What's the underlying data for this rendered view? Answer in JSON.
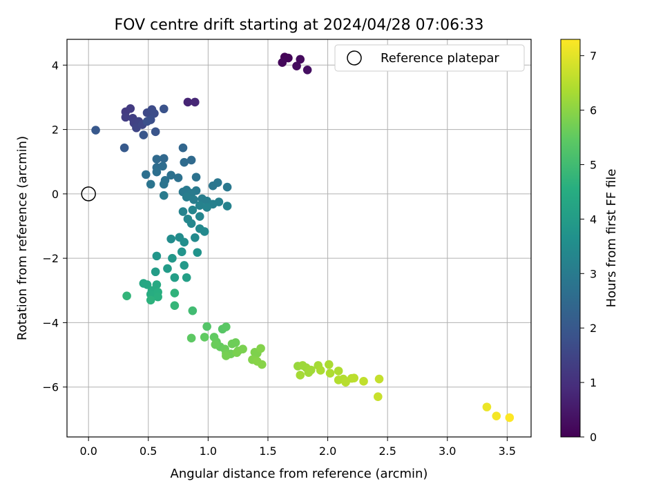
{
  "chart_data": {
    "type": "scatter",
    "title": "FOV centre drift starting at 2024/04/28 07:06:33",
    "xlabel": "Angular distance from reference (arcmin)",
    "ylabel": "Rotation from reference (arcmin)",
    "xlim": [
      -0.18,
      3.7
    ],
    "ylim": [
      -7.55,
      4.8
    ],
    "xticks": [
      0.0,
      0.5,
      1.0,
      1.5,
      2.0,
      2.5,
      3.0,
      3.5
    ],
    "xtick_labels": [
      "0.0",
      "0.5",
      "1.0",
      "1.5",
      "2.0",
      "2.5",
      "3.0",
      "3.5"
    ],
    "yticks": [
      -6,
      -4,
      -2,
      0,
      2,
      4
    ],
    "ytick_labels": [
      "−6",
      "−4",
      "−2",
      "0",
      "2",
      "4"
    ],
    "grid": true,
    "legend": {
      "placement": "top-right",
      "entries": [
        "Reference platepar"
      ]
    },
    "reference_point": {
      "x": 0.0,
      "y": 0.0
    },
    "colorbar": {
      "label": "Hours from first FF file",
      "colormap": "viridis",
      "range": [
        0,
        7.3
      ],
      "ticks": [
        0,
        1,
        2,
        3,
        4,
        5,
        6,
        7
      ],
      "tick_labels": [
        "0",
        "1",
        "2",
        "3",
        "4",
        "5",
        "6",
        "7"
      ]
    },
    "points": [
      {
        "x": 1.64,
        "y": 4.25,
        "c": 0.05
      },
      {
        "x": 1.67,
        "y": 4.22,
        "c": 0.1
      },
      {
        "x": 1.62,
        "y": 4.08,
        "c": 0.15
      },
      {
        "x": 1.77,
        "y": 4.18,
        "c": 0.2
      },
      {
        "x": 1.74,
        "y": 3.97,
        "c": 0.25
      },
      {
        "x": 1.83,
        "y": 3.85,
        "c": 0.3
      },
      {
        "x": 0.83,
        "y": 2.85,
        "c": 0.75
      },
      {
        "x": 0.89,
        "y": 2.85,
        "c": 0.8
      },
      {
        "x": 0.31,
        "y": 2.55,
        "c": 1.2
      },
      {
        "x": 0.35,
        "y": 2.65,
        "c": 1.25
      },
      {
        "x": 0.31,
        "y": 2.38,
        "c": 1.3
      },
      {
        "x": 0.37,
        "y": 2.35,
        "c": 1.35
      },
      {
        "x": 0.38,
        "y": 2.2,
        "c": 1.4
      },
      {
        "x": 0.42,
        "y": 2.25,
        "c": 1.45
      },
      {
        "x": 0.4,
        "y": 2.05,
        "c": 1.5
      },
      {
        "x": 0.45,
        "y": 2.15,
        "c": 1.55
      },
      {
        "x": 0.49,
        "y": 2.52,
        "c": 1.6
      },
      {
        "x": 0.53,
        "y": 2.62,
        "c": 1.65
      },
      {
        "x": 0.55,
        "y": 2.5,
        "c": 1.7
      },
      {
        "x": 0.52,
        "y": 2.3,
        "c": 1.75
      },
      {
        "x": 0.49,
        "y": 2.25,
        "c": 1.8
      },
      {
        "x": 0.63,
        "y": 2.64,
        "c": 1.85
      },
      {
        "x": 0.56,
        "y": 1.93,
        "c": 1.9
      },
      {
        "x": 0.46,
        "y": 1.83,
        "c": 1.95
      },
      {
        "x": 0.06,
        "y": 1.98,
        "c": 2.0
      },
      {
        "x": 0.3,
        "y": 1.43,
        "c": 2.05
      },
      {
        "x": 0.79,
        "y": 1.43,
        "c": 2.4
      },
      {
        "x": 0.63,
        "y": 1.1,
        "c": 2.45
      },
      {
        "x": 0.57,
        "y": 1.08,
        "c": 2.5
      },
      {
        "x": 0.86,
        "y": 1.05,
        "c": 2.5
      },
      {
        "x": 0.8,
        "y": 0.98,
        "c": 2.55
      },
      {
        "x": 0.57,
        "y": 0.82,
        "c": 2.6
      },
      {
        "x": 0.62,
        "y": 0.86,
        "c": 2.6
      },
      {
        "x": 0.48,
        "y": 0.6,
        "c": 2.65
      },
      {
        "x": 0.57,
        "y": 0.68,
        "c": 2.65
      },
      {
        "x": 0.69,
        "y": 0.58,
        "c": 2.7
      },
      {
        "x": 0.75,
        "y": 0.5,
        "c": 2.7
      },
      {
        "x": 0.64,
        "y": 0.42,
        "c": 2.75
      },
      {
        "x": 0.9,
        "y": 0.52,
        "c": 2.75
      },
      {
        "x": 0.52,
        "y": 0.3,
        "c": 2.8
      },
      {
        "x": 0.63,
        "y": 0.3,
        "c": 2.8
      },
      {
        "x": 1.04,
        "y": 0.25,
        "c": 2.85
      },
      {
        "x": 1.08,
        "y": 0.35,
        "c": 2.85
      },
      {
        "x": 1.16,
        "y": 0.21,
        "c": 2.9
      },
      {
        "x": 0.79,
        "y": 0.06,
        "c": 2.9
      },
      {
        "x": 0.82,
        "y": 0.12,
        "c": 2.95
      },
      {
        "x": 0.9,
        "y": 0.1,
        "c": 2.95
      },
      {
        "x": 0.86,
        "y": 0.02,
        "c": 3.0
      },
      {
        "x": 0.63,
        "y": -0.05,
        "c": 3.0
      },
      {
        "x": 0.82,
        "y": -0.1,
        "c": 3.05
      },
      {
        "x": 0.88,
        "y": -0.18,
        "c": 3.05
      },
      {
        "x": 0.95,
        "y": -0.15,
        "c": 3.1
      },
      {
        "x": 0.99,
        "y": -0.22,
        "c": 3.1
      },
      {
        "x": 1.09,
        "y": -0.25,
        "c": 3.15
      },
      {
        "x": 1.04,
        "y": -0.32,
        "c": 3.15
      },
      {
        "x": 1.16,
        "y": -0.38,
        "c": 3.2
      },
      {
        "x": 0.93,
        "y": -0.36,
        "c": 3.2
      },
      {
        "x": 0.99,
        "y": -0.42,
        "c": 3.25
      },
      {
        "x": 0.79,
        "y": -0.55,
        "c": 3.25
      },
      {
        "x": 0.87,
        "y": -0.5,
        "c": 3.3
      },
      {
        "x": 0.93,
        "y": -0.7,
        "c": 3.3
      },
      {
        "x": 0.83,
        "y": -0.78,
        "c": 3.35
      },
      {
        "x": 0.86,
        "y": -0.92,
        "c": 3.35
      },
      {
        "x": 0.93,
        "y": -1.08,
        "c": 3.4
      },
      {
        "x": 0.97,
        "y": -1.17,
        "c": 3.4
      },
      {
        "x": 0.89,
        "y": -1.36,
        "c": 3.45
      },
      {
        "x": 0.69,
        "y": -1.4,
        "c": 3.5
      },
      {
        "x": 0.76,
        "y": -1.35,
        "c": 3.5
      },
      {
        "x": 0.8,
        "y": -1.5,
        "c": 3.55
      },
      {
        "x": 0.91,
        "y": -1.82,
        "c": 3.7
      },
      {
        "x": 0.78,
        "y": -1.8,
        "c": 3.75
      },
      {
        "x": 0.57,
        "y": -1.93,
        "c": 3.8
      },
      {
        "x": 0.7,
        "y": -2.0,
        "c": 3.85
      },
      {
        "x": 0.8,
        "y": -2.22,
        "c": 3.9
      },
      {
        "x": 0.66,
        "y": -2.32,
        "c": 3.95
      },
      {
        "x": 0.56,
        "y": -2.42,
        "c": 4.0
      },
      {
        "x": 0.72,
        "y": -2.6,
        "c": 4.05
      },
      {
        "x": 0.82,
        "y": -2.6,
        "c": 4.1
      },
      {
        "x": 0.46,
        "y": -2.78,
        "c": 4.3
      },
      {
        "x": 0.49,
        "y": -2.82,
        "c": 4.35
      },
      {
        "x": 0.57,
        "y": -2.82,
        "c": 4.4
      },
      {
        "x": 0.53,
        "y": -3.0,
        "c": 4.45
      },
      {
        "x": 0.52,
        "y": -3.12,
        "c": 4.5
      },
      {
        "x": 0.58,
        "y": -3.05,
        "c": 4.55
      },
      {
        "x": 0.58,
        "y": -3.2,
        "c": 4.6
      },
      {
        "x": 0.52,
        "y": -3.3,
        "c": 4.65
      },
      {
        "x": 0.72,
        "y": -3.08,
        "c": 4.7
      },
      {
        "x": 0.32,
        "y": -3.17,
        "c": 4.75
      },
      {
        "x": 0.72,
        "y": -3.47,
        "c": 4.8
      },
      {
        "x": 0.87,
        "y": -3.63,
        "c": 5.0
      },
      {
        "x": 0.99,
        "y": -4.12,
        "c": 5.3
      },
      {
        "x": 1.12,
        "y": -4.2,
        "c": 5.35
      },
      {
        "x": 1.15,
        "y": -4.13,
        "c": 5.4
      },
      {
        "x": 0.86,
        "y": -4.48,
        "c": 5.45
      },
      {
        "x": 0.97,
        "y": -4.45,
        "c": 5.5
      },
      {
        "x": 1.05,
        "y": -4.45,
        "c": 5.5
      },
      {
        "x": 1.07,
        "y": -4.6,
        "c": 5.55
      },
      {
        "x": 1.1,
        "y": -4.75,
        "c": 5.55
      },
      {
        "x": 1.06,
        "y": -4.68,
        "c": 5.6
      },
      {
        "x": 1.14,
        "y": -4.82,
        "c": 5.6
      },
      {
        "x": 1.2,
        "y": -4.66,
        "c": 5.65
      },
      {
        "x": 1.23,
        "y": -4.62,
        "c": 5.65
      },
      {
        "x": 1.15,
        "y": -4.95,
        "c": 5.7
      },
      {
        "x": 1.19,
        "y": -4.97,
        "c": 5.7
      },
      {
        "x": 1.15,
        "y": -5.03,
        "c": 5.75
      },
      {
        "x": 1.25,
        "y": -4.88,
        "c": 5.75
      },
      {
        "x": 1.29,
        "y": -4.82,
        "c": 5.8
      },
      {
        "x": 1.24,
        "y": -4.93,
        "c": 5.8
      },
      {
        "x": 1.39,
        "y": -4.92,
        "c": 5.85
      },
      {
        "x": 1.41,
        "y": -4.95,
        "c": 5.85
      },
      {
        "x": 1.44,
        "y": -4.8,
        "c": 5.9
      },
      {
        "x": 1.37,
        "y": -5.15,
        "c": 5.9
      },
      {
        "x": 1.41,
        "y": -5.2,
        "c": 5.95
      },
      {
        "x": 1.45,
        "y": -5.3,
        "c": 5.95
      },
      {
        "x": 1.75,
        "y": -5.35,
        "c": 6.15
      },
      {
        "x": 1.79,
        "y": -5.33,
        "c": 6.2
      },
      {
        "x": 1.82,
        "y": -5.4,
        "c": 6.2
      },
      {
        "x": 1.86,
        "y": -5.47,
        "c": 6.25
      },
      {
        "x": 1.84,
        "y": -5.55,
        "c": 6.25
      },
      {
        "x": 1.92,
        "y": -5.33,
        "c": 6.3
      },
      {
        "x": 1.77,
        "y": -5.63,
        "c": 6.3
      },
      {
        "x": 1.94,
        "y": -5.48,
        "c": 6.35
      },
      {
        "x": 2.01,
        "y": -5.3,
        "c": 6.35
      },
      {
        "x": 2.02,
        "y": -5.57,
        "c": 6.4
      },
      {
        "x": 2.09,
        "y": -5.5,
        "c": 6.4
      },
      {
        "x": 2.09,
        "y": -5.78,
        "c": 6.45
      },
      {
        "x": 2.13,
        "y": -5.75,
        "c": 6.45
      },
      {
        "x": 2.15,
        "y": -5.85,
        "c": 6.5
      },
      {
        "x": 2.2,
        "y": -5.73,
        "c": 6.5
      },
      {
        "x": 2.22,
        "y": -5.72,
        "c": 6.55
      },
      {
        "x": 2.3,
        "y": -5.82,
        "c": 6.6
      },
      {
        "x": 2.43,
        "y": -5.75,
        "c": 6.65
      },
      {
        "x": 2.42,
        "y": -6.3,
        "c": 6.7
      },
      {
        "x": 3.33,
        "y": -6.62,
        "c": 7.1
      },
      {
        "x": 3.41,
        "y": -6.9,
        "c": 7.2
      },
      {
        "x": 3.52,
        "y": -6.95,
        "c": 7.3
      }
    ]
  }
}
